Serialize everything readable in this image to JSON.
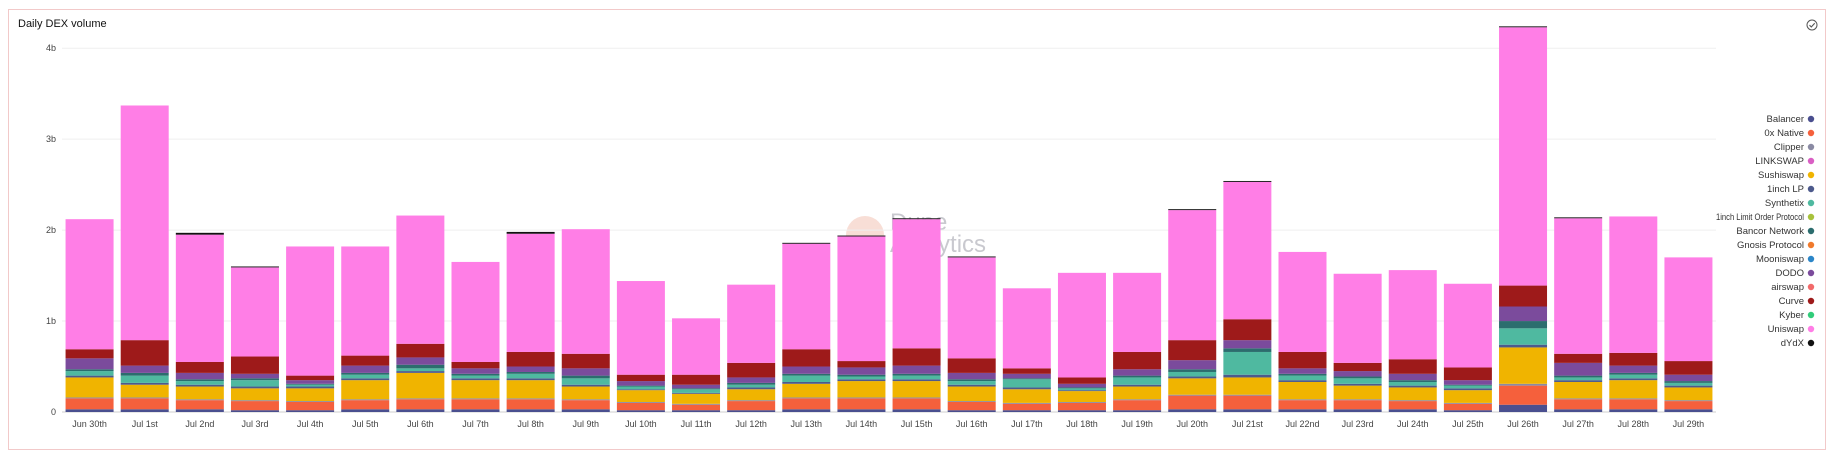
{
  "header": {
    "title": "Daily DEX volume"
  },
  "watermark": {
    "line1": "Dune",
    "line2": "Analytics"
  },
  "chart_data": {
    "type": "bar",
    "stacked": true,
    "title": "Daily DEX volume",
    "ylim": [
      0,
      4.2
    ],
    "yticks": [
      {
        "v": 0,
        "label": "0"
      },
      {
        "v": 1,
        "label": "1b"
      },
      {
        "v": 2,
        "label": "2b"
      },
      {
        "v": 3,
        "label": "3b"
      },
      {
        "v": 4,
        "label": "4b"
      }
    ],
    "grid": true,
    "legend_position": "right",
    "categories": [
      "Jun 30th",
      "Jul 1st",
      "Jul 2nd",
      "Jul 3rd",
      "Jul 4th",
      "Jul 5th",
      "Jul 6th",
      "Jul 7th",
      "Jul 8th",
      "Jul 9th",
      "Jul 10th",
      "Jul 11th",
      "Jul 12th",
      "Jul 13th",
      "Jul 14th",
      "Jul 15th",
      "Jul 16th",
      "Jul 17th",
      "Jul 18th",
      "Jul 19th",
      "Jul 20th",
      "Jul 21st",
      "Jul 22nd",
      "Jul 23rd",
      "Jul 24th",
      "Jul 25th",
      "Jul 26th",
      "Jul 27th",
      "Jul 28th",
      "Jul 29th"
    ],
    "series": [
      {
        "name": "Balancer",
        "color": "#4a4f8f",
        "values": [
          0.03,
          0.03,
          0.03,
          0.02,
          0.02,
          0.03,
          0.03,
          0.03,
          0.03,
          0.03,
          0.02,
          0.02,
          0.02,
          0.03,
          0.03,
          0.03,
          0.02,
          0.02,
          0.02,
          0.02,
          0.03,
          0.03,
          0.03,
          0.03,
          0.03,
          0.02,
          0.08,
          0.03,
          0.03,
          0.03
        ]
      },
      {
        "name": "0x Native",
        "color": "#f5603c",
        "values": [
          0.12,
          0.12,
          0.1,
          0.1,
          0.09,
          0.1,
          0.11,
          0.11,
          0.11,
          0.1,
          0.08,
          0.06,
          0.1,
          0.12,
          0.12,
          0.12,
          0.09,
          0.07,
          0.08,
          0.11,
          0.15,
          0.15,
          0.1,
          0.1,
          0.09,
          0.07,
          0.21,
          0.11,
          0.11,
          0.09
        ]
      },
      {
        "name": "Clipper",
        "color": "#8a8aa3",
        "values": [
          0.01,
          0.01,
          0.01,
          0.01,
          0.01,
          0.01,
          0.01,
          0.01,
          0.01,
          0.01,
          0.01,
          0.01,
          0.01,
          0.01,
          0.01,
          0.01,
          0.01,
          0.01,
          0.01,
          0.01,
          0.01,
          0.01,
          0.01,
          0.01,
          0.01,
          0.01,
          0.02,
          0.01,
          0.01,
          0.01
        ]
      },
      {
        "name": "LINKSWAP",
        "color": "#d95fc4",
        "values": [
          0,
          0,
          0,
          0,
          0,
          0,
          0,
          0,
          0,
          0,
          0,
          0,
          0,
          0,
          0,
          0,
          0,
          0,
          0,
          0,
          0,
          0,
          0,
          0,
          0,
          0,
          0,
          0,
          0,
          0
        ]
      },
      {
        "name": "Sushiswap",
        "color": "#f0b400",
        "values": [
          0.22,
          0.14,
          0.14,
          0.13,
          0.14,
          0.21,
          0.28,
          0.2,
          0.2,
          0.14,
          0.13,
          0.11,
          0.12,
          0.15,
          0.18,
          0.18,
          0.16,
          0.15,
          0.12,
          0.14,
          0.18,
          0.19,
          0.19,
          0.15,
          0.14,
          0.14,
          0.4,
          0.18,
          0.2,
          0.14
        ]
      },
      {
        "name": "1inch LP",
        "color": "#4d5a8c",
        "values": [
          0.02,
          0.02,
          0.02,
          0.02,
          0.02,
          0.02,
          0.02,
          0.02,
          0.02,
          0.02,
          0.01,
          0.01,
          0.02,
          0.02,
          0.02,
          0.02,
          0.02,
          0.02,
          0.01,
          0.02,
          0.02,
          0.03,
          0.02,
          0.02,
          0.02,
          0.02,
          0.03,
          0.02,
          0.02,
          0.02
        ]
      },
      {
        "name": "Synthetix",
        "color": "#4fb9a0",
        "values": [
          0.05,
          0.08,
          0.04,
          0.07,
          0.02,
          0.04,
          0.03,
          0.03,
          0.05,
          0.07,
          0.03,
          0.04,
          0.03,
          0.07,
          0.03,
          0.04,
          0.04,
          0.09,
          0.02,
          0.08,
          0.05,
          0.25,
          0.05,
          0.06,
          0.04,
          0.03,
          0.18,
          0.03,
          0.04,
          0.03
        ]
      },
      {
        "name": "1inch Limit Order Protocol",
        "color": "#a8c23c",
        "values": [
          0,
          0,
          0,
          0,
          0,
          0,
          0,
          0,
          0,
          0,
          0,
          0,
          0,
          0,
          0,
          0,
          0,
          0,
          0,
          0,
          0,
          0,
          0,
          0,
          0,
          0,
          0,
          0,
          0,
          0
        ]
      },
      {
        "name": "Bancor Network",
        "color": "#2c6d6e",
        "values": [
          0.02,
          0.03,
          0.02,
          0.02,
          0.01,
          0.02,
          0.04,
          0.02,
          0.02,
          0.03,
          0.01,
          0.01,
          0.02,
          0.02,
          0.02,
          0.02,
          0.02,
          0.01,
          0.01,
          0.02,
          0.03,
          0.04,
          0.02,
          0.02,
          0.02,
          0.01,
          0.08,
          0.02,
          0.02,
          0.02
        ]
      },
      {
        "name": "Gnosis Protocol",
        "color": "#f07a2c",
        "values": [
          0,
          0,
          0,
          0,
          0,
          0,
          0,
          0,
          0,
          0,
          0,
          0,
          0,
          0,
          0,
          0,
          0,
          0,
          0,
          0,
          0,
          0,
          0,
          0,
          0,
          0,
          0,
          0,
          0,
          0
        ]
      },
      {
        "name": "Mooniswap",
        "color": "#2c86c8",
        "values": [
          0,
          0,
          0,
          0,
          0,
          0,
          0,
          0,
          0,
          0,
          0,
          0,
          0,
          0,
          0,
          0,
          0,
          0,
          0,
          0,
          0,
          0,
          0,
          0,
          0,
          0,
          0,
          0,
          0,
          0
        ]
      },
      {
        "name": "DODO",
        "color": "#7b4b9c",
        "values": [
          0.12,
          0.08,
          0.07,
          0.05,
          0.04,
          0.08,
          0.08,
          0.06,
          0.06,
          0.08,
          0.05,
          0.04,
          0.06,
          0.08,
          0.08,
          0.09,
          0.07,
          0.05,
          0.04,
          0.07,
          0.1,
          0.09,
          0.06,
          0.06,
          0.07,
          0.05,
          0.16,
          0.14,
          0.08,
          0.07
        ]
      },
      {
        "name": "airswap",
        "color": "#f26a6a",
        "values": [
          0,
          0,
          0,
          0,
          0,
          0,
          0,
          0,
          0,
          0,
          0,
          0,
          0,
          0,
          0,
          0,
          0,
          0,
          0,
          0,
          0,
          0,
          0,
          0,
          0,
          0,
          0,
          0,
          0,
          0
        ]
      },
      {
        "name": "Curve",
        "color": "#9e1a1a",
        "values": [
          0.1,
          0.28,
          0.12,
          0.19,
          0.05,
          0.11,
          0.15,
          0.07,
          0.16,
          0.16,
          0.07,
          0.11,
          0.16,
          0.19,
          0.07,
          0.19,
          0.16,
          0.06,
          0.07,
          0.19,
          0.22,
          0.23,
          0.18,
          0.09,
          0.16,
          0.14,
          0.23,
          0.1,
          0.14,
          0.15
        ]
      },
      {
        "name": "Kyber",
        "color": "#31cc7a",
        "values": [
          0,
          0,
          0,
          0,
          0,
          0,
          0,
          0,
          0,
          0,
          0,
          0,
          0,
          0,
          0,
          0,
          0,
          0,
          0,
          0,
          0,
          0,
          0,
          0,
          0,
          0,
          0,
          0,
          0,
          0
        ]
      },
      {
        "name": "Uniswap",
        "color": "#ff7ee6",
        "values": [
          1.43,
          2.58,
          1.4,
          0.98,
          1.42,
          1.2,
          1.41,
          1.1,
          1.3,
          1.37,
          1.03,
          0.62,
          0.86,
          1.16,
          1.37,
          1.42,
          1.11,
          0.88,
          1.15,
          0.87,
          1.43,
          1.51,
          1.1,
          0.98,
          0.98,
          0.92,
          2.84,
          1.49,
          1.5,
          1.14
        ]
      },
      {
        "name": "dYdX",
        "color": "#111111",
        "values": [
          0,
          0,
          0.02,
          0.01,
          0,
          0,
          0,
          0,
          0.02,
          0,
          0,
          0,
          0,
          0.01,
          0.01,
          0.01,
          0.01,
          0,
          0,
          0,
          0.01,
          0.01,
          0,
          0,
          0,
          0,
          0.01,
          0.01,
          0,
          0
        ]
      }
    ]
  }
}
